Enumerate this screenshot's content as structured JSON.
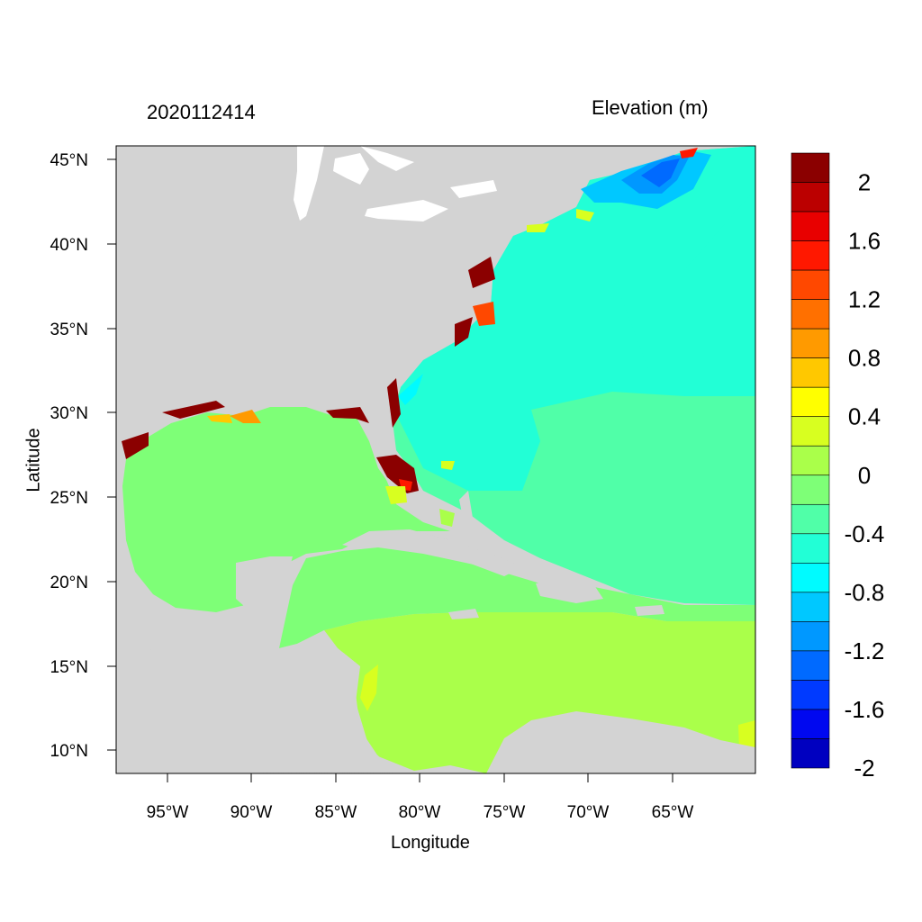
{
  "map": {
    "left_title": "2020112414",
    "right_title": "Elevation (m)",
    "xlabel": "Longitude",
    "ylabel": "Latitude",
    "lon_ticks": [
      "95°W",
      "90°W",
      "85°W",
      "80°W",
      "75°W",
      "70°W",
      "65°W"
    ],
    "lat_ticks": [
      "45°N",
      "40°N",
      "35°N",
      "30°N",
      "25°N",
      "20°N",
      "15°N",
      "10°N"
    ],
    "land_color": "#d3d3d3"
  },
  "colorbar": {
    "labels": [
      "2",
      "1.6",
      "1.2",
      "0.8",
      "0.4",
      "0",
      "-0.4",
      "-0.8",
      "-1.2",
      "-1.6",
      "-2"
    ],
    "colors": [
      "#8b0000",
      "#bb0000",
      "#e80000",
      "#ff1800",
      "#ff4800",
      "#ff7000",
      "#ff9a00",
      "#ffc800",
      "#ffff00",
      "#d8ff20",
      "#aaff4a",
      "#7eff77",
      "#50ffa8",
      "#22ffd6",
      "#00fbff",
      "#00c8ff",
      "#0098ff",
      "#006aff",
      "#003aff",
      "#0008f0",
      "#0000c0"
    ]
  }
}
